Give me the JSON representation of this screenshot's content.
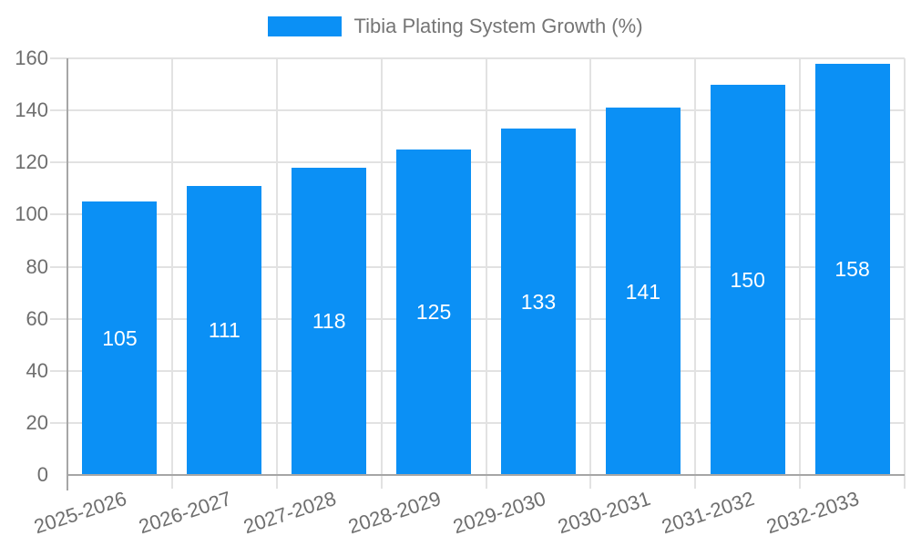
{
  "legend": {
    "label": "Tibia Plating System Growth (%)"
  },
  "chart_data": {
    "type": "bar",
    "title": "Tibia Plating System Growth (%)",
    "categories": [
      "2025-2026",
      "2026-2027",
      "2027-2028",
      "2028-2029",
      "2029-2030",
      "2030-2031",
      "2031-2032",
      "2032-2033"
    ],
    "values": [
      105,
      111,
      118,
      125,
      133,
      141,
      150,
      158
    ],
    "xlabel": "",
    "ylabel": "",
    "ylim": [
      0,
      160
    ],
    "yticks": [
      0,
      20,
      40,
      60,
      80,
      100,
      120,
      140,
      160
    ],
    "grid": true,
    "legend_position": "top",
    "value_labels": "inside-center"
  },
  "style": {
    "bar_color": "#0b90f5",
    "value_label_color": "#ffffff",
    "grid_color": "#e2e2e2",
    "axis_color": "#a6a6a6",
    "tick_label_color": "#6e6e6e",
    "legend_text_color": "#757575",
    "background": "#ffffff"
  }
}
